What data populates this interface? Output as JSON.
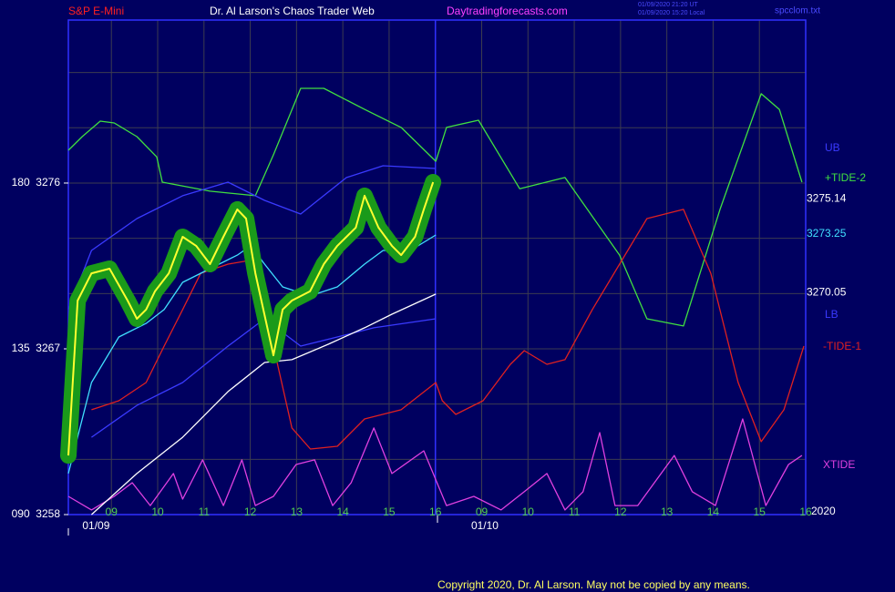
{
  "chart_data": {
    "type": "line",
    "title": "Dr. Al Larson's Chaos Trader Web",
    "instrument": "S&P E-Mini",
    "site": "Daytradingforecasts.com",
    "stamp": [
      "01/09/2020 21:20 UT",
      "01/09/2020 15:20 Local"
    ],
    "file": "spcclom.txt",
    "copyright": "Copyright 2020, Dr. Al Larson. May not be copied by any means.",
    "year": "2020",
    "date_labels": [
      {
        "value": 8.57,
        "label": "01/09"
      },
      {
        "value": 16.97,
        "label": "01/10"
      }
    ],
    "xlim": [
      8.07,
      24.0
    ],
    "ylim": [
      3258,
      3284.85
    ],
    "xticks": [
      {
        "value": 9,
        "label": "09"
      },
      10,
      11,
      12,
      13,
      14,
      15,
      16,
      {
        "value": 17,
        "label": "09"
      },
      {
        "value": 18,
        "label": "10"
      },
      {
        "value": 19,
        "label": "11"
      },
      {
        "value": 20,
        "label": "12"
      },
      {
        "value": 21,
        "label": "13"
      },
      {
        "value": 22,
        "label": "14"
      },
      {
        "value": 23,
        "label": "15"
      },
      {
        "value": 24,
        "label": "16"
      }
    ],
    "yticks": [
      {
        "value": 3276,
        "label": "180  3276"
      },
      {
        "value": 3267,
        "label": "135  3267"
      },
      {
        "value": 3258,
        "label": "090  3258"
      }
    ],
    "yminor_ticks": [
      3261,
      3264,
      3267,
      3270,
      3273,
      3276,
      3279,
      3282
    ],
    "grid": true,
    "level_labels": [
      {
        "value": 3275.14,
        "color": "#ffffff"
      },
      {
        "value": 3273.25,
        "color": "#40e0ff"
      },
      {
        "value": 3270.05,
        "color": "#ffffff"
      }
    ],
    "series": [
      {
        "name": "XTIDE",
        "color": "#e040e0",
        "x": [
          8.07,
          8.57,
          9.06,
          9.45,
          9.84,
          10.34,
          10.54,
          10.97,
          11.42,
          11.82,
          12.11,
          12.5,
          12.99,
          13.39,
          13.78,
          14.18,
          14.67,
          15.06,
          15.75,
          16.24,
          16.83,
          17.42,
          17.92,
          18.41,
          18.8,
          19.19,
          19.55,
          19.88,
          20.37,
          21.16,
          21.55,
          22.05,
          22.64,
          23.14,
          23.63,
          23.92
        ],
        "values": [
          3258.99,
          3258.25,
          3258.99,
          3259.73,
          3258.49,
          3260.23,
          3258.84,
          3260.97,
          3258.49,
          3260.97,
          3258.49,
          3258.99,
          3260.72,
          3260.97,
          3258.49,
          3259.73,
          3262.7,
          3260.23,
          3261.46,
          3258.49,
          3258.99,
          3258.25,
          3259.24,
          3260.23,
          3258.25,
          3259.24,
          3262.45,
          3258.49,
          3258.49,
          3261.21,
          3259.24,
          3258.49,
          3263.19,
          3258.49,
          3260.72,
          3261.21
        ]
      },
      {
        "name": "+TIDE-2",
        "color": "#40e040",
        "x": [
          8.07,
          8.37,
          8.76,
          9.06,
          9.55,
          9.98,
          10.1,
          11.13,
          12.11,
          12.5,
          13.09,
          13.59,
          14.47,
          15.26,
          16.01,
          16.24,
          16.93,
          17.82,
          18.8,
          19.98,
          20.57,
          21.36,
          22.15,
          23.04,
          23.43,
          23.92
        ],
        "values": [
          3277.78,
          3278.52,
          3279.36,
          3279.26,
          3278.52,
          3277.42,
          3276.05,
          3275.56,
          3275.31,
          3277.53,
          3281.14,
          3281.14,
          3280.0,
          3279.02,
          3277.18,
          3279.02,
          3279.41,
          3275.69,
          3276.3,
          3272.09,
          3268.63,
          3268.24,
          3274.57,
          3280.85,
          3280.0,
          3276.05
        ]
      },
      {
        "name": "-TIDE-1",
        "color": "#e02020",
        "x": [
          8.57,
          9.16,
          9.75,
          10.14,
          10.54,
          10.93,
          11.52,
          12.11,
          12.5,
          12.9,
          13.3,
          13.88,
          14.47,
          15.26,
          16.01,
          16.15,
          16.44,
          17.03,
          17.62,
          17.92,
          18.41,
          18.8,
          19.39,
          19.98,
          20.57,
          21.36,
          21.95,
          22.54,
          23.04,
          23.53,
          23.96
        ],
        "values": [
          3263.69,
          3264.18,
          3265.17,
          3267.15,
          3269.13,
          3271.1,
          3271.6,
          3271.85,
          3267.15,
          3262.7,
          3261.56,
          3261.71,
          3263.19,
          3263.69,
          3265.17,
          3264.18,
          3263.44,
          3264.18,
          3266.16,
          3266.9,
          3266.16,
          3266.41,
          3269.13,
          3271.6,
          3274.07,
          3274.57,
          3271.1,
          3265.17,
          3261.96,
          3263.69,
          3267.15
        ]
      },
      {
        "name": "UB",
        "color": "#3a3aff",
        "x": [
          8.07,
          8.57,
          9.55,
          10.54,
          11.52,
          12.31,
          13.09,
          14.08,
          14.87,
          16.01
        ],
        "values": [
          3269.13,
          3272.34,
          3274.07,
          3275.31,
          3276.05,
          3275.06,
          3274.32,
          3276.3,
          3276.94,
          3276.79
        ]
      },
      {
        "name": "LB",
        "color": "#3a3aff",
        "x": [
          8.57,
          9.55,
          10.54,
          11.52,
          12.31,
          13.09,
          13.88,
          14.67,
          16.01
        ],
        "values": [
          3262.2,
          3263.93,
          3265.17,
          3267.15,
          3268.63,
          3267.15,
          3267.64,
          3268.14,
          3268.63
        ]
      },
      {
        "color": "#ffffff",
        "x": [
          8.57,
          9.55,
          10.54,
          11.52,
          12.31,
          12.9,
          13.69,
          14.47,
          15.06,
          16.01
        ],
        "values": [
          3258,
          3260.23,
          3262.2,
          3264.68,
          3266.26,
          3266.41,
          3267.25,
          3268.14,
          3268.88,
          3269.97
        ]
      },
      {
        "color": "#40e0ff",
        "x": [
          8.07,
          8.57,
          9.16,
          9.75,
          10.14,
          10.54,
          11.13,
          11.72,
          12.01,
          12.31,
          12.7,
          13.29,
          13.88,
          14.47,
          14.87,
          15.46,
          16.01
        ],
        "values": [
          3260.23,
          3265.17,
          3267.64,
          3268.38,
          3269.13,
          3270.61,
          3271.35,
          3272.09,
          3272.59,
          3271.6,
          3270.36,
          3269.87,
          3270.36,
          3271.6,
          3272.34,
          3272.34,
          3273.18
        ]
      },
      {
        "color": "#ffff30",
        "halo": "#1a9a1a",
        "x": [
          8.07,
          8.27,
          8.57,
          8.96,
          9.35,
          9.55,
          9.75,
          9.94,
          10.24,
          10.54,
          10.83,
          11.13,
          11.42,
          11.72,
          11.91,
          12.11,
          12.5,
          12.7,
          12.9,
          13.29,
          13.59,
          13.88,
          14.28,
          14.47,
          14.77,
          15.06,
          15.26,
          15.56,
          15.75,
          15.95
        ],
        "values": [
          3261.21,
          3269.62,
          3271.1,
          3271.35,
          3269.62,
          3268.63,
          3269.13,
          3270.12,
          3271.1,
          3273.08,
          3272.59,
          3271.6,
          3273.08,
          3274.57,
          3274.07,
          3271.1,
          3266.65,
          3269.13,
          3269.62,
          3270.12,
          3271.6,
          3272.59,
          3273.58,
          3275.31,
          3273.58,
          3272.59,
          3272.09,
          3273.08,
          3274.57,
          3276.05
        ]
      }
    ]
  }
}
